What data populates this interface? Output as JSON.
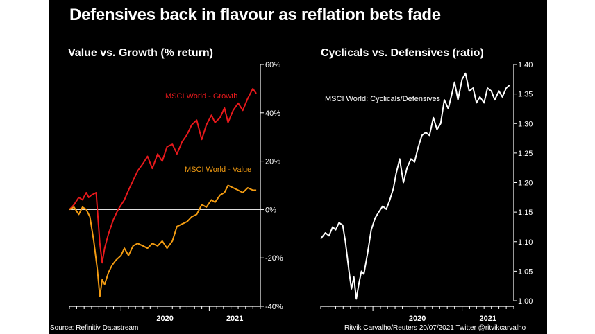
{
  "title": "Defensives back in flavour as reflation bets fade",
  "footer": {
    "source": "Source: Refinitiv Datastream",
    "credit": "Ritvik Carvalho/Reuters 20/07/2021 Twitter @ritvikcarvalho"
  },
  "colors": {
    "background": "#000000",
    "growth": "#e8191c",
    "value": "#f39c12",
    "ratio": "#ffffff",
    "axis": "#ffffff"
  },
  "chart_data": [
    {
      "type": "line",
      "title": "Value vs. Growth (% return)",
      "xlabel": "",
      "ylabel": "",
      "x_ticks": [
        "2020",
        "2021"
      ],
      "x_range": [
        "2019-06",
        "2021-07"
      ],
      "y_ticks": [
        "60%",
        "40%",
        "20%",
        "0%",
        "-20%",
        "-40%"
      ],
      "ylim": [
        -40,
        60
      ],
      "y_axis_side": "right",
      "reference_line": 0,
      "grid": false,
      "series": [
        {
          "name": "MSCI World - Growth",
          "color": "#e8191c",
          "points": [
            [
              "2019-06-01",
              0
            ],
            [
              "2019-06-20",
              2
            ],
            [
              "2019-07-10",
              5
            ],
            [
              "2019-07-25",
              4
            ],
            [
              "2019-08-10",
              7
            ],
            [
              "2019-08-20",
              5
            ],
            [
              "2019-09-01",
              6
            ],
            [
              "2019-09-20",
              7
            ],
            [
              "2019-10-05",
              -14
            ],
            [
              "2019-10-15",
              -22
            ],
            [
              "2019-10-25",
              -16
            ],
            [
              "2019-11-10",
              -10
            ],
            [
              "2019-12-01",
              -4
            ],
            [
              "2019-12-20",
              0
            ],
            [
              "2020-01-15",
              4
            ],
            [
              "2020-02-01",
              8
            ],
            [
              "2020-02-20",
              12
            ],
            [
              "2020-03-10",
              16
            ],
            [
              "2020-04-01",
              19
            ],
            [
              "2020-04-20",
              22
            ],
            [
              "2020-05-10",
              17
            ],
            [
              "2020-06-01",
              23
            ],
            [
              "2020-06-20",
              20
            ],
            [
              "2020-07-10",
              26
            ],
            [
              "2020-08-01",
              27
            ],
            [
              "2020-08-20",
              23
            ],
            [
              "2020-09-10",
              28
            ],
            [
              "2020-10-01",
              31
            ],
            [
              "2020-10-20",
              35
            ],
            [
              "2020-11-10",
              37
            ],
            [
              "2020-12-01",
              29
            ],
            [
              "2020-12-20",
              35
            ],
            [
              "2021-01-10",
              39
            ],
            [
              "2021-01-25",
              36
            ],
            [
              "2021-02-15",
              38
            ],
            [
              "2021-03-05",
              42
            ],
            [
              "2021-03-20",
              36
            ],
            [
              "2021-04-10",
              41
            ],
            [
              "2021-05-01",
              44
            ],
            [
              "2021-05-20",
              41
            ],
            [
              "2021-06-10",
              46
            ],
            [
              "2021-07-01",
              50
            ],
            [
              "2021-07-15",
              48
            ]
          ]
        },
        {
          "name": "MSCI World - Value",
          "color": "#f39c12",
          "points": [
            [
              "2019-06-01",
              0
            ],
            [
              "2019-06-20",
              1
            ],
            [
              "2019-07-10",
              -2
            ],
            [
              "2019-07-25",
              1
            ],
            [
              "2019-08-10",
              0
            ],
            [
              "2019-08-25",
              -3
            ],
            [
              "2019-09-10",
              -13
            ],
            [
              "2019-09-25",
              -25
            ],
            [
              "2019-10-05",
              -36
            ],
            [
              "2019-10-15",
              -29
            ],
            [
              "2019-10-25",
              -31
            ],
            [
              "2019-11-10",
              -26
            ],
            [
              "2019-11-25",
              -23
            ],
            [
              "2019-12-10",
              -21
            ],
            [
              "2020-01-01",
              -19
            ],
            [
              "2020-01-15",
              -16
            ],
            [
              "2020-02-01",
              -19
            ],
            [
              "2020-02-20",
              -15
            ],
            [
              "2020-03-10",
              -14
            ],
            [
              "2020-04-01",
              -15
            ],
            [
              "2020-04-20",
              -16
            ],
            [
              "2020-05-10",
              -14
            ],
            [
              "2020-06-01",
              -15
            ],
            [
              "2020-06-20",
              -13
            ],
            [
              "2020-07-10",
              -16
            ],
            [
              "2020-08-01",
              -13
            ],
            [
              "2020-08-20",
              -7
            ],
            [
              "2020-09-10",
              -6
            ],
            [
              "2020-10-01",
              -5
            ],
            [
              "2020-10-20",
              -3
            ],
            [
              "2020-11-10",
              -2
            ],
            [
              "2020-12-01",
              2
            ],
            [
              "2020-12-20",
              1
            ],
            [
              "2021-01-10",
              4
            ],
            [
              "2021-01-25",
              3
            ],
            [
              "2021-02-15",
              6
            ],
            [
              "2021-03-05",
              7
            ],
            [
              "2021-03-20",
              10
            ],
            [
              "2021-04-10",
              9
            ],
            [
              "2021-05-01",
              8
            ],
            [
              "2021-05-20",
              7
            ],
            [
              "2021-06-10",
              9
            ],
            [
              "2021-07-01",
              8
            ],
            [
              "2021-07-15",
              8
            ]
          ]
        }
      ]
    },
    {
      "type": "line",
      "title": "Cyclicals vs. Defensives (ratio)",
      "xlabel": "",
      "ylabel": "",
      "x_ticks": [
        "2020",
        "2021"
      ],
      "x_range": [
        "2019-06",
        "2021-07"
      ],
      "y_ticks": [
        "1.40",
        "1.35",
        "1.30",
        "1.25",
        "1.20",
        "1.15",
        "1.10",
        "1.05",
        "1.00"
      ],
      "ylim": [
        1.0,
        1.4
      ],
      "y_axis_side": "right",
      "grid": false,
      "series": [
        {
          "name": "MSCI World: Cyclicals/Defensives",
          "color": "#ffffff",
          "points": [
            [
              "2019-06-01",
              1.105
            ],
            [
              "2019-06-20",
              1.115
            ],
            [
              "2019-07-05",
              1.11
            ],
            [
              "2019-07-20",
              1.125
            ],
            [
              "2019-08-01",
              1.12
            ],
            [
              "2019-08-15",
              1.132
            ],
            [
              "2019-08-30",
              1.128
            ],
            [
              "2019-09-10",
              1.1
            ],
            [
              "2019-09-25",
              1.05
            ],
            [
              "2019-10-05",
              1.02
            ],
            [
              "2019-10-15",
              1.04
            ],
            [
              "2019-10-25",
              1.003
            ],
            [
              "2019-11-05",
              1.03
            ],
            [
              "2019-11-15",
              1.05
            ],
            [
              "2019-11-25",
              1.045
            ],
            [
              "2019-12-10",
              1.08
            ],
            [
              "2019-12-25",
              1.12
            ],
            [
              "2020-01-10",
              1.14
            ],
            [
              "2020-01-25",
              1.15
            ],
            [
              "2020-02-10",
              1.16
            ],
            [
              "2020-02-25",
              1.155
            ],
            [
              "2020-03-10",
              1.17
            ],
            [
              "2020-03-25",
              1.19
            ],
            [
              "2020-04-05",
              1.215
            ],
            [
              "2020-04-20",
              1.24
            ],
            [
              "2020-05-05",
              1.2
            ],
            [
              "2020-05-20",
              1.225
            ],
            [
              "2020-06-05",
              1.24
            ],
            [
              "2020-06-20",
              1.235
            ],
            [
              "2020-07-05",
              1.26
            ],
            [
              "2020-07-20",
              1.28
            ],
            [
              "2020-08-05",
              1.285
            ],
            [
              "2020-08-20",
              1.28
            ],
            [
              "2020-09-05",
              1.31
            ],
            [
              "2020-09-20",
              1.29
            ],
            [
              "2020-10-05",
              1.3
            ],
            [
              "2020-10-20",
              1.34
            ],
            [
              "2020-11-05",
              1.325
            ],
            [
              "2020-11-20",
              1.35
            ],
            [
              "2020-12-01",
              1.37
            ],
            [
              "2020-12-15",
              1.34
            ],
            [
              "2021-01-01",
              1.375
            ],
            [
              "2021-01-15",
              1.385
            ],
            [
              "2021-01-30",
              1.355
            ],
            [
              "2021-02-15",
              1.36
            ],
            [
              "2021-03-01",
              1.335
            ],
            [
              "2021-03-15",
              1.345
            ],
            [
              "2021-04-01",
              1.335
            ],
            [
              "2021-04-15",
              1.36
            ],
            [
              "2021-05-01",
              1.355
            ],
            [
              "2021-05-15",
              1.34
            ],
            [
              "2021-06-01",
              1.355
            ],
            [
              "2021-06-15",
              1.345
            ],
            [
              "2021-07-01",
              1.36
            ],
            [
              "2021-07-15",
              1.365
            ]
          ]
        }
      ]
    }
  ]
}
